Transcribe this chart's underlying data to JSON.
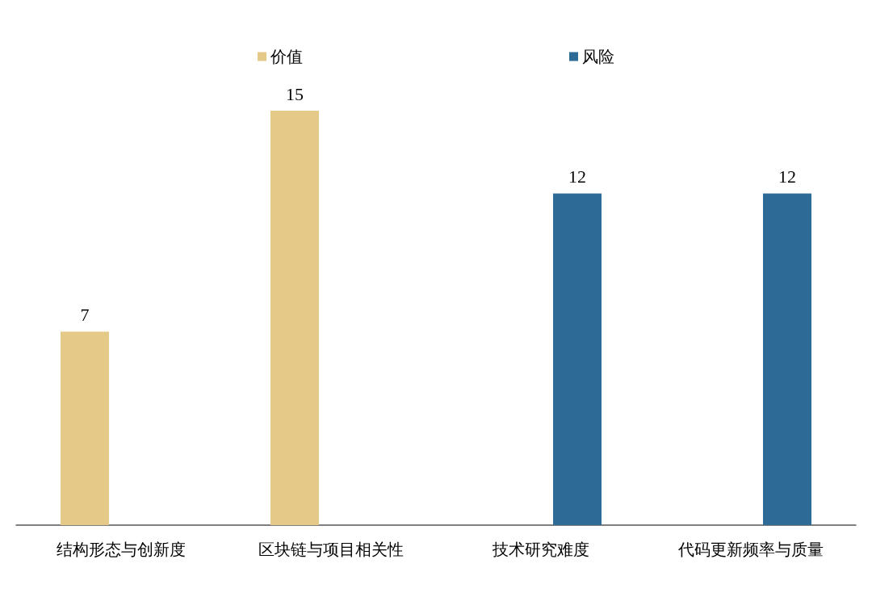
{
  "chart_data": {
    "type": "bar",
    "categories": [
      "结构形态与创新度",
      "区块链与项目相关性",
      "技术研究难度",
      "代码更新频率与质量"
    ],
    "series": [
      {
        "name": "价值",
        "color": "#e5c988",
        "values": [
          7,
          15,
          null,
          null
        ]
      },
      {
        "name": "风险",
        "color": "#2e6a96",
        "values": [
          null,
          null,
          12,
          12
        ]
      }
    ],
    "data_labels": true,
    "legend": "top"
  }
}
